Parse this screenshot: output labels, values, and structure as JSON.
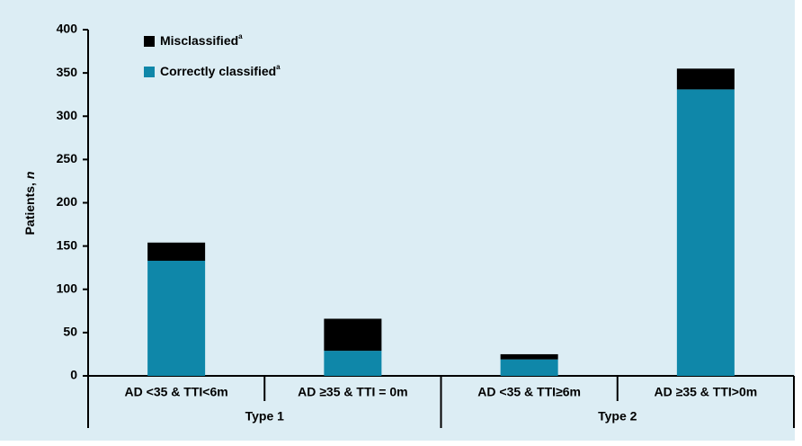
{
  "chart_data": {
    "type": "stacked_bar",
    "y_label": {
      "text": "Patients,",
      "italic": "n"
    },
    "categories": [
      "AD <35 & TTI<6m",
      "AD ≥35 & TTI = 0m",
      "AD <35 & TTI≥6m",
      "AD ≥35 & TTI>0m"
    ],
    "groups": [
      {
        "label": "Type 1",
        "size": 2
      },
      {
        "label": "Type 2",
        "size": 2
      }
    ],
    "series": [
      {
        "name": "Correctly classified",
        "superscript": "a",
        "color": "#0f87a9",
        "values": [
          133,
          29,
          19,
          331
        ]
      },
      {
        "name": "Misclassified",
        "superscript": "a",
        "color": "#000000",
        "values": [
          21,
          37,
          6,
          24
        ]
      }
    ],
    "ylim": [
      0,
      400
    ],
    "yticks": [
      0,
      50,
      100,
      150,
      200,
      250,
      300,
      350,
      400
    ],
    "legend_position": "upper left"
  }
}
